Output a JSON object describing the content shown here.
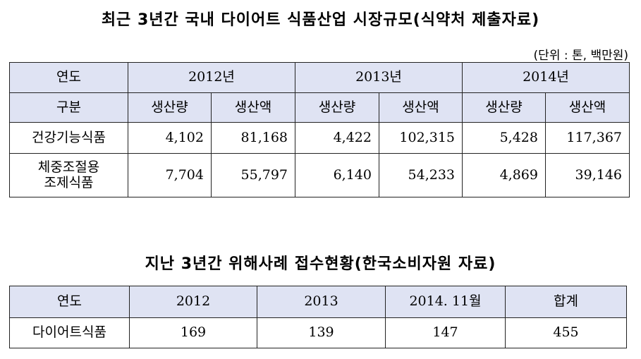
{
  "table1": {
    "title": "최근 3년간 국내 다이어트 식품산업 시장규모(식약처 제출자료)",
    "unit": "(단위 : 톤, 백만원)",
    "header_year_label": "연도",
    "header_category_label": "구분",
    "years": [
      "2012년",
      "2013년",
      "2014년"
    ],
    "sub_headers": [
      "생산량",
      "생산액",
      "생산량",
      "생산액",
      "생산량",
      "생산액"
    ],
    "rows": [
      {
        "label_lines": [
          "건강기능식품"
        ],
        "values": [
          "4,102",
          "81,168",
          "4,422",
          "102,315",
          "5,428",
          "117,367"
        ]
      },
      {
        "label_lines": [
          "체중조절용",
          "조제식품"
        ],
        "values": [
          "7,704",
          "55,797",
          "6,140",
          "54,233",
          "4,869",
          "39,146"
        ]
      }
    ]
  },
  "table2": {
    "title": "지난 3년간 위해사례 접수현황(한국소비자원 자료)",
    "header_label": "연도",
    "columns": [
      "2012",
      "2013",
      "2014. 11월",
      "합계"
    ],
    "row_label": "다이어트식품",
    "values": [
      "169",
      "139",
      "147",
      "455"
    ]
  }
}
